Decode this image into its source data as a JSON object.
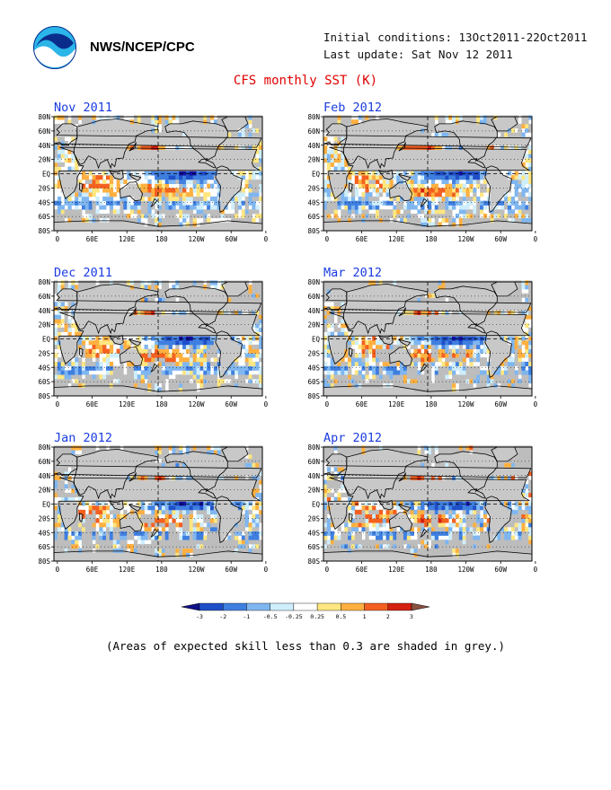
{
  "header": {
    "org": "NWS/NCEP/CPC",
    "initial_conditions": "Initial conditions: 13Oct2011-22Oct2011",
    "last_update": "Last update: Sat Nov 12 2011",
    "title": "CFS monthly SST (K)"
  },
  "axes": {
    "lat_ticks": [
      "80N",
      "60N",
      "40N",
      "20N",
      "EQ",
      "20S",
      "40S",
      "60S",
      "80S"
    ],
    "lon_ticks": [
      "0",
      "60E",
      "120E",
      "180",
      "120W",
      "60W",
      "0"
    ]
  },
  "panels": [
    {
      "label": "Nov 2011",
      "seed": 11
    },
    {
      "label": "Feb 2012",
      "seed": 23
    },
    {
      "label": "Dec 2011",
      "seed": 37
    },
    {
      "label": "Mar 2012",
      "seed": 41
    },
    {
      "label": "Jan 2012",
      "seed": 53
    },
    {
      "label": "Apr 2012",
      "seed": 67
    }
  ],
  "colorbar": {
    "labels": [
      "-3",
      "-2",
      "-1",
      "-0.5",
      "-0.25",
      "0.25",
      "0.5",
      "1",
      "2",
      "3"
    ],
    "colors": [
      "#1010a0",
      "#1f4fc8",
      "#3f7fe0",
      "#7fb6f0",
      "#cfeefc",
      "#ffffff",
      "#ffe680",
      "#ffb040",
      "#f46020",
      "#d42010",
      "#a01010"
    ],
    "left_end_color": "#10108a",
    "right_end_color": "#8a5040"
  },
  "note": "(Areas of expected skill less than 0.3 are shaded in grey.)",
  "colors": {
    "land": "#c8c8c8",
    "skill_grey": "#bdbdbd",
    "title_red": "#e00000",
    "label_blue": "#1a3ce0"
  }
}
